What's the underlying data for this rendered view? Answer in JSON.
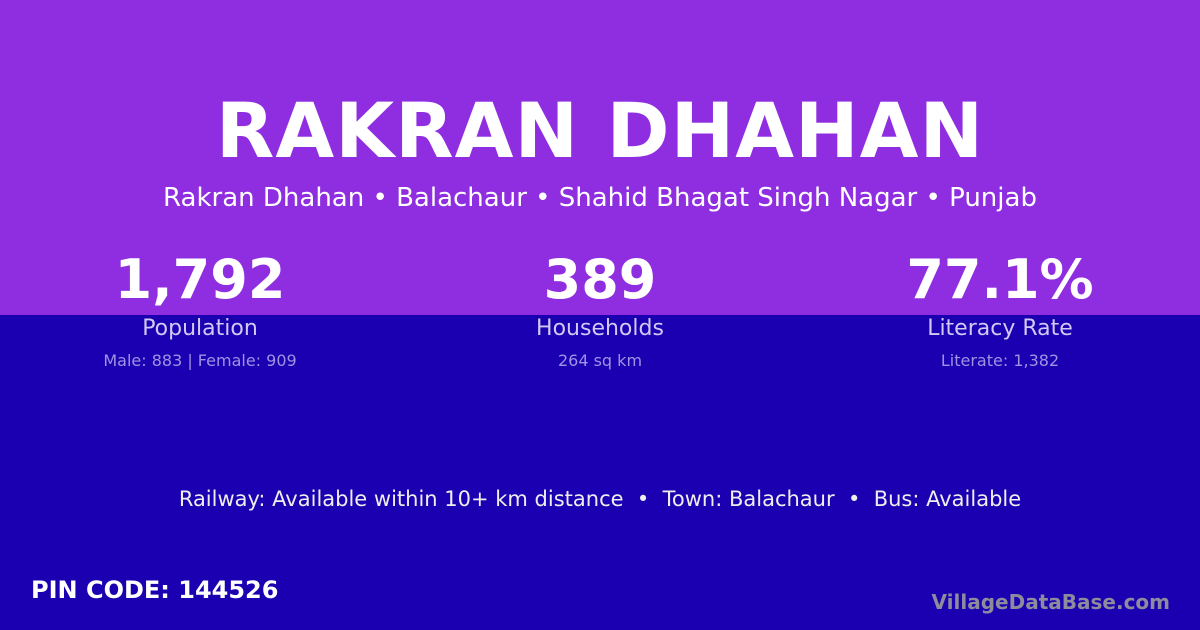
{
  "title": "RAKRAN DHAHAN",
  "subtitle": "Rakran Dhahan • Balachaur • Shahid Bhagat Singh Nagar • Punjab",
  "stats": [
    {
      "value": "1,792",
      "label": "Population",
      "sub": "Male: 883 | Female: 909"
    },
    {
      "value": "389",
      "label": "Households",
      "sub": "264 sq km"
    },
    {
      "value": "77.1%",
      "label": "Literacy Rate",
      "sub": "Literate: 1,382"
    }
  ],
  "amenities": "Railway: Available within 10+ km distance  •  Town: Balachaur  •  Bus: Available",
  "pin": "PIN CODE: 144526",
  "brand": "VillageDataBase.com",
  "colors": {
    "top": "#8f2de0",
    "bottom": "#1a00b0"
  }
}
